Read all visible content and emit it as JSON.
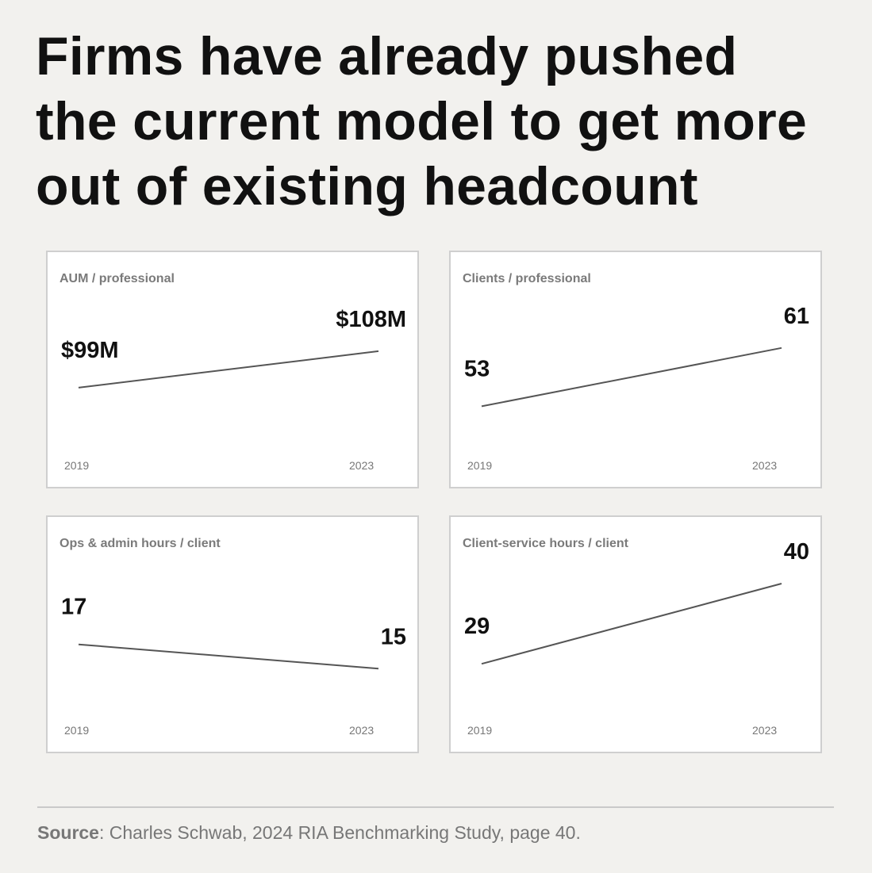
{
  "headline": {
    "line1": "Firms have already pushed",
    "line2": "the current model to get more",
    "line3": "out of existing headcount"
  },
  "footer": {
    "source_label": "Source",
    "source_text": ": Charles Schwab, 2024 RIA Benchmarking Study, page 40."
  },
  "colors": {
    "background": "#f2f1ee",
    "panel": "#ffffff",
    "line": "#555555"
  },
  "chart_data": [
    {
      "type": "line",
      "title": "AUM / professional",
      "x": [
        "2019",
        "2023"
      ],
      "values": [
        99,
        108
      ],
      "labels": [
        "$99M",
        "$108M"
      ],
      "ylim": [
        80,
        125
      ]
    },
    {
      "type": "line",
      "title": "Clients / professional",
      "x": [
        "2019",
        "2023"
      ],
      "values": [
        53,
        61
      ],
      "labels": [
        "53",
        "61"
      ],
      "ylim": [
        45,
        70
      ]
    },
    {
      "type": "line",
      "title": "Ops & admin hours / client",
      "x": [
        "2019",
        "2023"
      ],
      "values": [
        17,
        15
      ],
      "labels": [
        "17",
        "15"
      ],
      "ylim": [
        10,
        25
      ]
    },
    {
      "type": "line",
      "title": "Client-service hours / client",
      "x": [
        "2019",
        "2023"
      ],
      "values": [
        29,
        40
      ],
      "labels": [
        "29",
        "40"
      ],
      "ylim": [
        20,
        45
      ]
    }
  ]
}
